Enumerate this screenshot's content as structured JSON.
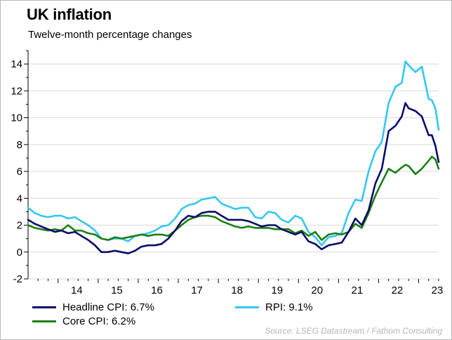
{
  "header": {
    "title": "UK inflation",
    "subtitle": "Twelve-month percentage changes"
  },
  "source": "Source: LSEG Datastream / Fathom Consulting",
  "colors": {
    "headline": "#0b0b6b",
    "rpi": "#33c8f0",
    "core": "#1a7f14",
    "grid": "#d9d9d9"
  },
  "chart_data": {
    "type": "line",
    "title": "UK inflation",
    "subtitle": "Twelve-month percentage changes",
    "x_label": "",
    "y_label": "",
    "xlim": [
      2013.25,
      2023.5
    ],
    "ylim": [
      -2,
      15
    ],
    "y_ticks": [
      -2,
      0,
      2,
      4,
      6,
      8,
      10,
      12,
      14
    ],
    "x_tick_labels": [
      "14",
      "15",
      "16",
      "17",
      "18",
      "19",
      "20",
      "21",
      "22",
      "23"
    ],
    "x_tick_positions": [
      2014.0,
      2015.0,
      2016.0,
      2017.0,
      2018.0,
      2019.0,
      2020.0,
      2021.0,
      2022.0,
      2023.0
    ],
    "grid": "horizontal",
    "legend_position": "bottom",
    "series": [
      {
        "name": "Headline CPI: 6.7%",
        "color": "#0b0b6b",
        "points": [
          [
            2013.25,
            2.4
          ],
          [
            2013.42,
            2.1
          ],
          [
            2013.58,
            1.9
          ],
          [
            2013.75,
            1.7
          ],
          [
            2013.92,
            1.5
          ],
          [
            2014.08,
            1.6
          ],
          [
            2014.25,
            1.4
          ],
          [
            2014.42,
            1.5
          ],
          [
            2014.58,
            1.2
          ],
          [
            2014.75,
            0.9
          ],
          [
            2014.92,
            0.5
          ],
          [
            2015.08,
            0.0
          ],
          [
            2015.25,
            0.0
          ],
          [
            2015.42,
            0.1
          ],
          [
            2015.58,
            0.0
          ],
          [
            2015.75,
            -0.1
          ],
          [
            2015.92,
            0.1
          ],
          [
            2016.08,
            0.4
          ],
          [
            2016.25,
            0.5
          ],
          [
            2016.42,
            0.5
          ],
          [
            2016.58,
            0.6
          ],
          [
            2016.75,
            1.0
          ],
          [
            2016.92,
            1.6
          ],
          [
            2017.08,
            2.3
          ],
          [
            2017.25,
            2.7
          ],
          [
            2017.42,
            2.6
          ],
          [
            2017.58,
            2.9
          ],
          [
            2017.75,
            3.0
          ],
          [
            2017.92,
            3.0
          ],
          [
            2018.08,
            2.7
          ],
          [
            2018.25,
            2.4
          ],
          [
            2018.42,
            2.4
          ],
          [
            2018.58,
            2.4
          ],
          [
            2018.75,
            2.3
          ],
          [
            2018.92,
            2.1
          ],
          [
            2019.08,
            1.9
          ],
          [
            2019.25,
            2.0
          ],
          [
            2019.42,
            2.0
          ],
          [
            2019.58,
            1.7
          ],
          [
            2019.75,
            1.5
          ],
          [
            2019.92,
            1.3
          ],
          [
            2020.08,
            1.5
          ],
          [
            2020.25,
            0.8
          ],
          [
            2020.42,
            0.6
          ],
          [
            2020.58,
            0.2
          ],
          [
            2020.75,
            0.5
          ],
          [
            2020.92,
            0.6
          ],
          [
            2021.08,
            0.7
          ],
          [
            2021.25,
            1.5
          ],
          [
            2021.42,
            2.5
          ],
          [
            2021.58,
            2.0
          ],
          [
            2021.75,
            3.1
          ],
          [
            2021.92,
            5.1
          ],
          [
            2022.08,
            6.2
          ],
          [
            2022.25,
            9.0
          ],
          [
            2022.42,
            9.4
          ],
          [
            2022.58,
            10.1
          ],
          [
            2022.67,
            11.1
          ],
          [
            2022.75,
            10.7
          ],
          [
            2022.92,
            10.5
          ],
          [
            2023.08,
            10.1
          ],
          [
            2023.25,
            8.7
          ],
          [
            2023.33,
            8.7
          ],
          [
            2023.42,
            7.9
          ],
          [
            2023.5,
            6.7
          ]
        ]
      },
      {
        "name": "RPI: 9.1%",
        "color": "#33c8f0",
        "points": [
          [
            2013.25,
            3.3
          ],
          [
            2013.42,
            2.9
          ],
          [
            2013.58,
            2.7
          ],
          [
            2013.75,
            2.6
          ],
          [
            2013.92,
            2.7
          ],
          [
            2014.08,
            2.7
          ],
          [
            2014.25,
            2.5
          ],
          [
            2014.42,
            2.6
          ],
          [
            2014.58,
            2.3
          ],
          [
            2014.75,
            2.0
          ],
          [
            2014.92,
            1.6
          ],
          [
            2015.08,
            1.0
          ],
          [
            2015.25,
            0.9
          ],
          [
            2015.42,
            1.0
          ],
          [
            2015.58,
            1.0
          ],
          [
            2015.75,
            0.8
          ],
          [
            2015.92,
            1.2
          ],
          [
            2016.08,
            1.3
          ],
          [
            2016.25,
            1.4
          ],
          [
            2016.42,
            1.6
          ],
          [
            2016.58,
            1.9
          ],
          [
            2016.75,
            2.0
          ],
          [
            2016.92,
            2.5
          ],
          [
            2017.08,
            3.2
          ],
          [
            2017.25,
            3.5
          ],
          [
            2017.42,
            3.6
          ],
          [
            2017.58,
            3.9
          ],
          [
            2017.75,
            4.0
          ],
          [
            2017.92,
            4.1
          ],
          [
            2018.08,
            3.6
          ],
          [
            2018.25,
            3.4
          ],
          [
            2018.42,
            3.2
          ],
          [
            2018.58,
            3.3
          ],
          [
            2018.75,
            3.3
          ],
          [
            2018.92,
            2.6
          ],
          [
            2019.08,
            2.5
          ],
          [
            2019.25,
            3.0
          ],
          [
            2019.42,
            2.9
          ],
          [
            2019.58,
            2.4
          ],
          [
            2019.75,
            2.2
          ],
          [
            2019.92,
            2.7
          ],
          [
            2020.08,
            2.5
          ],
          [
            2020.25,
            1.5
          ],
          [
            2020.42,
            1.1
          ],
          [
            2020.58,
            0.5
          ],
          [
            2020.75,
            1.1
          ],
          [
            2020.92,
            1.2
          ],
          [
            2021.08,
            1.4
          ],
          [
            2021.25,
            2.9
          ],
          [
            2021.42,
            3.9
          ],
          [
            2021.58,
            3.8
          ],
          [
            2021.75,
            6.0
          ],
          [
            2021.92,
            7.5
          ],
          [
            2022.08,
            8.2
          ],
          [
            2022.25,
            11.1
          ],
          [
            2022.42,
            12.3
          ],
          [
            2022.58,
            12.6
          ],
          [
            2022.67,
            14.2
          ],
          [
            2022.75,
            13.9
          ],
          [
            2022.92,
            13.4
          ],
          [
            2023.08,
            13.8
          ],
          [
            2023.25,
            11.4
          ],
          [
            2023.33,
            11.3
          ],
          [
            2023.42,
            10.7
          ],
          [
            2023.5,
            9.1
          ]
        ]
      },
      {
        "name": "Core CPI: 6.2%",
        "color": "#1a7f14",
        "points": [
          [
            2013.25,
            2.0
          ],
          [
            2013.42,
            1.8
          ],
          [
            2013.58,
            1.7
          ],
          [
            2013.75,
            1.6
          ],
          [
            2013.92,
            1.7
          ],
          [
            2014.08,
            1.6
          ],
          [
            2014.25,
            2.0
          ],
          [
            2014.42,
            1.6
          ],
          [
            2014.58,
            1.6
          ],
          [
            2014.75,
            1.4
          ],
          [
            2014.92,
            1.3
          ],
          [
            2015.08,
            1.0
          ],
          [
            2015.25,
            0.9
          ],
          [
            2015.42,
            1.1
          ],
          [
            2015.58,
            1.0
          ],
          [
            2015.75,
            1.1
          ],
          [
            2015.92,
            1.2
          ],
          [
            2016.08,
            1.3
          ],
          [
            2016.25,
            1.2
          ],
          [
            2016.42,
            1.3
          ],
          [
            2016.58,
            1.3
          ],
          [
            2016.75,
            1.2
          ],
          [
            2016.92,
            1.6
          ],
          [
            2017.08,
            2.0
          ],
          [
            2017.25,
            2.4
          ],
          [
            2017.42,
            2.6
          ],
          [
            2017.58,
            2.7
          ],
          [
            2017.75,
            2.7
          ],
          [
            2017.92,
            2.6
          ],
          [
            2018.08,
            2.3
          ],
          [
            2018.25,
            2.1
          ],
          [
            2018.42,
            1.9
          ],
          [
            2018.58,
            1.8
          ],
          [
            2018.75,
            1.9
          ],
          [
            2018.92,
            1.8
          ],
          [
            2019.08,
            1.8
          ],
          [
            2019.25,
            1.8
          ],
          [
            2019.42,
            1.7
          ],
          [
            2019.58,
            1.7
          ],
          [
            2019.75,
            1.7
          ],
          [
            2019.92,
            1.4
          ],
          [
            2020.08,
            1.6
          ],
          [
            2020.25,
            1.2
          ],
          [
            2020.42,
            1.5
          ],
          [
            2020.58,
            0.9
          ],
          [
            2020.75,
            1.3
          ],
          [
            2020.92,
            1.4
          ],
          [
            2021.08,
            1.3
          ],
          [
            2021.25,
            1.5
          ],
          [
            2021.42,
            2.1
          ],
          [
            2021.58,
            1.8
          ],
          [
            2021.75,
            2.9
          ],
          [
            2021.92,
            4.2
          ],
          [
            2022.08,
            5.2
          ],
          [
            2022.25,
            6.2
          ],
          [
            2022.42,
            5.9
          ],
          [
            2022.58,
            6.3
          ],
          [
            2022.67,
            6.5
          ],
          [
            2022.75,
            6.4
          ],
          [
            2022.92,
            5.8
          ],
          [
            2023.08,
            6.2
          ],
          [
            2023.25,
            6.8
          ],
          [
            2023.33,
            7.1
          ],
          [
            2023.42,
            6.9
          ],
          [
            2023.5,
            6.2
          ]
        ]
      }
    ]
  }
}
